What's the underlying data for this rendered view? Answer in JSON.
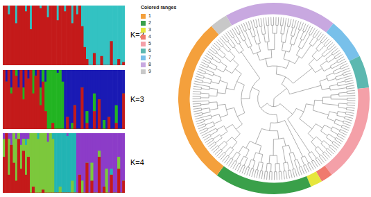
{
  "chart_data": [
    {
      "type": "bar",
      "title": "K=2",
      "stacked": true,
      "tick_labels": false,
      "grid": false,
      "ylim": [
        0,
        1
      ],
      "categories": [
        null,
        null,
        null,
        null,
        null,
        null,
        null,
        null,
        null,
        null,
        null,
        null,
        null,
        null,
        null,
        null,
        null,
        null,
        null,
        null,
        null,
        null,
        null,
        null,
        null,
        null,
        null,
        null,
        null,
        null,
        null,
        null,
        null,
        null,
        null,
        null,
        null,
        null,
        null,
        null,
        null,
        null,
        null,
        null,
        null,
        null,
        null,
        null,
        null,
        null
      ],
      "series": [
        {
          "color": "#c41a1a",
          "values": [
            1,
            1,
            0.85,
            1,
            1,
            0.7,
            1,
            1,
            1,
            0.9,
            1,
            0.6,
            1,
            1,
            1,
            0.95,
            1,
            1,
            0.8,
            1,
            1,
            1,
            0.75,
            1,
            1,
            0.9,
            1,
            1,
            0.7,
            1,
            0.85,
            1,
            0.65,
            0.3,
            0.1,
            0,
            0,
            0.2,
            0,
            0,
            0.15,
            0,
            0,
            0,
            0.4,
            0,
            0,
            0.1,
            0,
            0.05
          ]
        },
        {
          "color": "#33c2c2",
          "values": [
            0,
            0,
            0.15,
            0,
            0,
            0.3,
            0,
            0,
            0,
            0.1,
            0,
            0.4,
            0,
            0,
            0,
            0.05,
            0,
            0,
            0.2,
            0,
            0,
            0,
            0.25,
            0,
            0,
            0.1,
            0,
            0,
            0.3,
            0,
            0.15,
            0,
            0.35,
            0.7,
            0.9,
            1,
            1,
            0.8,
            1,
            1,
            0.85,
            1,
            1,
            1,
            0.6,
            1,
            1,
            0.9,
            1,
            0.95
          ]
        }
      ]
    },
    {
      "type": "bar",
      "title": "K=3",
      "stacked": true,
      "tick_labels": false,
      "grid": false,
      "ylim": [
        0,
        1
      ],
      "categories": [
        null,
        null,
        null,
        null,
        null,
        null,
        null,
        null,
        null,
        null,
        null,
        null,
        null,
        null,
        null,
        null,
        null,
        null,
        null,
        null,
        null,
        null,
        null,
        null,
        null,
        null,
        null,
        null,
        null,
        null,
        null,
        null,
        null,
        null,
        null,
        null,
        null,
        null,
        null,
        null,
        null,
        null,
        null,
        null,
        null,
        null,
        null,
        null,
        null,
        null
      ],
      "series": [
        {
          "color": "#c41a1a",
          "values": [
            1,
            0.8,
            1,
            0.6,
            1,
            0.9,
            0.7,
            1,
            0.5,
            1,
            0.85,
            1,
            0.6,
            0.9,
            1,
            0.4,
            0.8,
            0.3,
            0,
            0,
            0.1,
            0,
            0,
            0,
            0,
            0,
            0.2,
            0,
            0,
            0.4,
            0,
            0,
            0.7,
            0,
            0.1,
            0,
            0,
            0.3,
            0,
            0.5,
            0,
            0,
            0,
            0.2,
            0,
            0,
            0.1,
            0,
            0,
            0.6
          ]
        },
        {
          "color": "#22b422",
          "values": [
            0,
            0,
            0,
            0.1,
            0,
            0.1,
            0,
            0,
            0.2,
            0,
            0,
            0,
            0.4,
            0,
            0,
            0.3,
            0.2,
            0.5,
            1,
            1,
            0.9,
            1,
            0.95,
            1,
            0.8,
            0,
            0,
            0,
            0.1,
            0,
            0,
            0,
            0,
            0,
            0.2,
            0,
            0,
            0.3,
            0,
            0,
            0,
            0.15,
            0,
            0,
            0,
            0,
            0.3,
            0,
            0,
            0
          ]
        },
        {
          "color": "#1a1ab4",
          "values": [
            0,
            0.2,
            0,
            0.3,
            0,
            0,
            0.3,
            0,
            0.3,
            0,
            0.15,
            0,
            0,
            0.1,
            0,
            0.3,
            0,
            0.2,
            0,
            0,
            0,
            0,
            0.05,
            0,
            0.2,
            1,
            0.8,
            1,
            0.9,
            0.6,
            1,
            1,
            0.3,
            1,
            0.7,
            1,
            1,
            0.4,
            1,
            0.5,
            1,
            0.85,
            1,
            0.8,
            1,
            1,
            0.6,
            1,
            1,
            0.4
          ]
        }
      ]
    },
    {
      "type": "bar",
      "title": "K=4",
      "stacked": true,
      "tick_labels": false,
      "grid": false,
      "ylim": [
        0,
        1
      ],
      "categories": [
        null,
        null,
        null,
        null,
        null,
        null,
        null,
        null,
        null,
        null,
        null,
        null,
        null,
        null,
        null,
        null,
        null,
        null,
        null,
        null,
        null,
        null,
        null,
        null,
        null,
        null,
        null,
        null,
        null,
        null,
        null,
        null,
        null,
        null,
        null,
        null,
        null,
        null,
        null,
        null,
        null,
        null,
        null,
        null,
        null,
        null,
        null,
        null,
        null,
        null
      ],
      "series": [
        {
          "color": "#c41a1a",
          "values": [
            0.6,
            1,
            0.3,
            0.8,
            0.5,
            0.2,
            0.9,
            0.4,
            0.7,
            0.3,
            0.6,
            0,
            0.1,
            0,
            0,
            0,
            0.05,
            0,
            0,
            0,
            0,
            0,
            0,
            0,
            0,
            0,
            0,
            0,
            0,
            0,
            0,
            0.3,
            0,
            0,
            0.5,
            0,
            0.2,
            0,
            0,
            0.6,
            0,
            0.1,
            0,
            0,
            0.3,
            0,
            0,
            0.4,
            0,
            0.2
          ]
        },
        {
          "color": "#7cc83c",
          "values": [
            0.3,
            0,
            0.6,
            0,
            0.5,
            0.7,
            0.1,
            0.4,
            0.2,
            0.5,
            0.3,
            1,
            0.9,
            1,
            0.9,
            1,
            0.95,
            1,
            0.85,
            1,
            0.9,
            0,
            0,
            0.1,
            0,
            0,
            0,
            0,
            0.2,
            0,
            0,
            0,
            0.2,
            0,
            0,
            0,
            0.3,
            0,
            0,
            0.1,
            0,
            0,
            0.4,
            0,
            0,
            0,
            0,
            0.2,
            0,
            0
          ]
        },
        {
          "color": "#22b4b4",
          "values": [
            0,
            0,
            0,
            0,
            0,
            0,
            0,
            0,
            0,
            0.1,
            0,
            0,
            0,
            0,
            0.1,
            0,
            0,
            0,
            0,
            0,
            0.1,
            1,
            1,
            0.9,
            1,
            1,
            0.95,
            1,
            0.8,
            1,
            0,
            0,
            0,
            0,
            0,
            0,
            0,
            0,
            0,
            0,
            0,
            0,
            0,
            0,
            0.1,
            0,
            0,
            0,
            0,
            0
          ]
        },
        {
          "color": "#8c3cc8",
          "values": [
            0.1,
            0,
            0.1,
            0.2,
            0,
            0.1,
            0,
            0.2,
            0.1,
            0.1,
            0.1,
            0,
            0,
            0,
            0,
            0,
            0,
            0,
            0.15,
            0,
            0,
            0,
            0,
            0,
            0,
            0,
            0.05,
            0,
            0,
            0,
            1,
            0.7,
            0.8,
            1,
            0.5,
            1,
            0.5,
            1,
            1,
            0.3,
            1,
            0.9,
            0.6,
            1,
            0.6,
            1,
            1,
            0.4,
            1,
            0.8
          ]
        }
      ]
    },
    {
      "type": "dendrogram",
      "legend_title": "Colored ranges",
      "groups": [
        {
          "name": "1",
          "color": "#f4a03c",
          "leaves": 57
        },
        {
          "name": "2",
          "color": "#3aa04a",
          "leaves": 33
        },
        {
          "name": "3",
          "color": "#e6e63c",
          "leaves": 4
        },
        {
          "name": "4",
          "color": "#f07a6e",
          "leaves": 4
        },
        {
          "name": "5",
          "color": "#f4a0a8",
          "leaves": 33
        },
        {
          "name": "6",
          "color": "#5cb8b0",
          "leaves": 11
        },
        {
          "name": "7",
          "color": "#78c0ea",
          "leaves": 14
        },
        {
          "name": "8",
          "color": "#c8a8e0",
          "leaves": 38
        },
        {
          "name": "9",
          "color": "#c8c8c8",
          "leaves": 6
        }
      ],
      "topology": [
        [
          [
            "8",
            "7"
          ],
          "6"
        ],
        [
          [
            "5",
            "4"
          ],
          [
            [
              "3",
              "2"
            ],
            [
              "1",
              "9"
            ]
          ]
        ]
      ]
    }
  ]
}
